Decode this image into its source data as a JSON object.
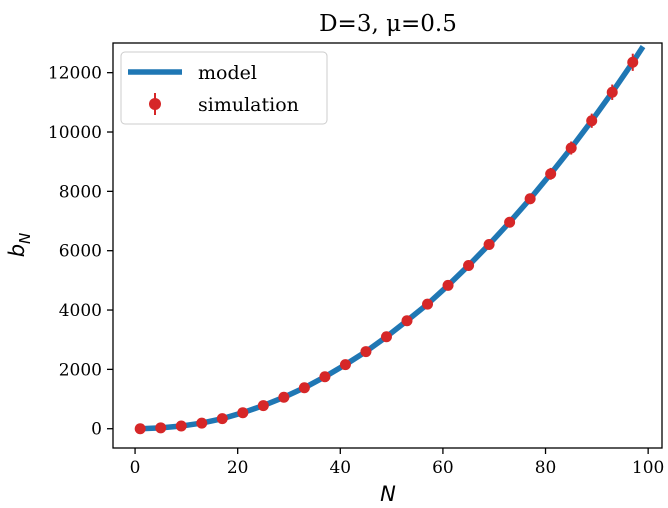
{
  "chart_data": {
    "type": "line",
    "title": "D=3, μ=0.5",
    "xlabel": "N",
    "ylabel": "b_N",
    "xlim": [
      -4.3,
      102.7
    ],
    "ylim": [
      -650,
      13000
    ],
    "xticks": [
      0,
      20,
      40,
      60,
      80,
      100
    ],
    "yticks": [
      0,
      2000,
      4000,
      6000,
      8000,
      10000,
      12000
    ],
    "grid": false,
    "legend": "top-left",
    "colors": {
      "model": "#1f77b4",
      "simulation": "#d62728"
    },
    "series": [
      {
        "name": "model",
        "kind": "line",
        "x": [
          1,
          5,
          9,
          13,
          17,
          21,
          25,
          29,
          33,
          37,
          41,
          45,
          49,
          53,
          57,
          61,
          65,
          69,
          73,
          77,
          81,
          85,
          89,
          93,
          97,
          99
        ],
        "y": [
          0,
          30,
          90,
          190,
          340,
          540,
          780,
          1060,
          1380,
          1750,
          2160,
          2600,
          3100,
          3640,
          4200,
          4830,
          5500,
          6210,
          6960,
          7750,
          8590,
          9460,
          10380,
          11340,
          12350,
          12880
        ]
      },
      {
        "name": "simulation",
        "kind": "errorbar",
        "x": [
          1,
          5,
          9,
          13,
          17,
          21,
          25,
          29,
          33,
          37,
          41,
          45,
          49,
          53,
          57,
          61,
          65,
          69,
          73,
          77,
          81,
          85,
          89,
          93,
          97
        ],
        "y": [
          0,
          30,
          90,
          190,
          340,
          540,
          780,
          1060,
          1380,
          1750,
          2160,
          2600,
          3100,
          3640,
          4200,
          4830,
          5500,
          6210,
          6960,
          7750,
          8590,
          9460,
          10380,
          11340,
          12350
        ],
        "yerr": [
          10,
          15,
          20,
          25,
          30,
          40,
          45,
          50,
          60,
          70,
          80,
          90,
          100,
          110,
          120,
          130,
          140,
          150,
          160,
          180,
          200,
          220,
          240,
          260,
          290
        ]
      }
    ]
  }
}
